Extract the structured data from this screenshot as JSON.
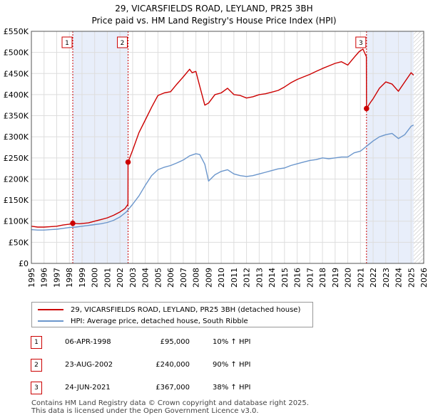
{
  "title_line1": "29, VICARSFIELDS ROAD, LEYLAND, PR25 3BH",
  "title_line2": "Price paid vs. HM Land Registry's House Price Index (HPI)",
  "colors": {
    "property": "#cc0000",
    "hpi": "#6b96cc",
    "shade": "#e8eefa",
    "vline": "#cc0000",
    "grid": "#dddddd",
    "hatch": "#bbbbbb"
  },
  "legend": {
    "property_label": "29, VICARSFIELDS ROAD, LEYLAND, PR25 3BH (detached house)",
    "hpi_label": "HPI: Average price, detached house, South Ribble"
  },
  "sales": [
    {
      "num": "1",
      "date": "06-APR-1998",
      "price": "£95,000",
      "hpi": "10% ↑ HPI"
    },
    {
      "num": "2",
      "date": "23-AUG-2002",
      "price": "£240,000",
      "hpi": "90% ↑ HPI"
    },
    {
      "num": "3",
      "date": "24-JUN-2021",
      "price": "£367,000",
      "hpi": "38% ↑ HPI"
    }
  ],
  "footer": {
    "line1": "Contains HM Land Registry data © Crown copyright and database right 2025.",
    "line2": "This data is licensed under the Open Government Licence v3.0."
  },
  "chart_data": {
    "type": "line",
    "title": "29, VICARSFIELDS ROAD, LEYLAND, PR25 3BH — Price paid vs. HM Land Registry's House Price Index (HPI)",
    "xlim": [
      1995,
      2026
    ],
    "ylim": [
      0,
      550000
    ],
    "x_ticks": [
      1995,
      1996,
      1997,
      1998,
      1999,
      2000,
      2001,
      2002,
      2003,
      2004,
      2005,
      2006,
      2007,
      2008,
      2009,
      2010,
      2011,
      2012,
      2013,
      2014,
      2015,
      2016,
      2017,
      2018,
      2019,
      2020,
      2021,
      2022,
      2023,
      2024,
      2025,
      2026
    ],
    "y_ticks": [
      {
        "v": 0,
        "label": "£0"
      },
      {
        "v": 50000,
        "label": "£50K"
      },
      {
        "v": 100000,
        "label": "£100K"
      },
      {
        "v": 150000,
        "label": "£150K"
      },
      {
        "v": 200000,
        "label": "£200K"
      },
      {
        "v": 250000,
        "label": "£250K"
      },
      {
        "v": 300000,
        "label": "£300K"
      },
      {
        "v": 350000,
        "label": "£350K"
      },
      {
        "v": 400000,
        "label": "£400K"
      },
      {
        "v": 450000,
        "label": "£450K"
      },
      {
        "v": 500000,
        "label": "£500K"
      },
      {
        "v": 550000,
        "label": "£550K"
      }
    ],
    "shaded_ranges": [
      [
        1998.27,
        2002.64
      ],
      [
        2021.48,
        2025.2
      ]
    ],
    "hatched_from": 2025.2,
    "markers": [
      {
        "num": "1",
        "x": 1998.27,
        "y": 95000
      },
      {
        "num": "2",
        "x": 2002.64,
        "y": 240000
      },
      {
        "num": "3",
        "x": 2021.48,
        "y": 367000
      }
    ],
    "series": [
      {
        "name": "29, VICARSFIELDS ROAD, LEYLAND, PR25 3BH (detached house)",
        "x": [
          1995.0,
          1995.5,
          1996.0,
          1996.5,
          1997.0,
          1997.5,
          1998.0,
          1998.27,
          1998.8,
          1999.5,
          2000.0,
          2000.5,
          2001.0,
          2001.5,
          2002.0,
          2002.4,
          2002.63,
          2002.64,
          2003.0,
          2003.5,
          2004.0,
          2004.5,
          2005.0,
          2005.5,
          2006.0,
          2006.5,
          2007.0,
          2007.5,
          2007.7,
          2008.0,
          2008.3,
          2008.7,
          2009.0,
          2009.5,
          2010.0,
          2010.5,
          2011.0,
          2011.5,
          2012.0,
          2012.5,
          2013.0,
          2013.5,
          2014.0,
          2014.5,
          2015.0,
          2015.5,
          2016.0,
          2016.5,
          2017.0,
          2017.5,
          2018.0,
          2018.5,
          2019.0,
          2019.5,
          2020.0,
          2020.5,
          2020.9,
          2021.2,
          2021.47,
          2021.48,
          2021.8,
          2022.0,
          2022.5,
          2023.0,
          2023.5,
          2024.0,
          2024.5,
          2025.0,
          2025.2
        ],
        "values": [
          88000,
          86000,
          86000,
          87000,
          88000,
          91000,
          93000,
          95000,
          94000,
          96000,
          100000,
          104000,
          108000,
          114000,
          122000,
          130000,
          140000,
          240000,
          268000,
          310000,
          340000,
          370000,
          398000,
          404000,
          407000,
          425000,
          442000,
          460000,
          452000,
          455000,
          420000,
          375000,
          380000,
          400000,
          404000,
          415000,
          400000,
          398000,
          392000,
          395000,
          400000,
          402000,
          406000,
          410000,
          418000,
          428000,
          436000,
          442000,
          448000,
          455000,
          462000,
          468000,
          474000,
          478000,
          470000,
          488000,
          502000,
          508000,
          490000,
          367000,
          382000,
          390000,
          415000,
          430000,
          425000,
          408000,
          430000,
          452000,
          446000
        ]
      },
      {
        "name": "HPI: Average price, detached house, South Ribble",
        "x": [
          1995.0,
          1995.5,
          1996.0,
          1996.5,
          1997.0,
          1997.5,
          1998.0,
          1998.5,
          1999.0,
          1999.5,
          2000.0,
          2000.5,
          2001.0,
          2001.5,
          2002.0,
          2002.5,
          2003.0,
          2003.5,
          2004.0,
          2004.5,
          2005.0,
          2005.5,
          2006.0,
          2006.5,
          2007.0,
          2007.5,
          2008.0,
          2008.3,
          2008.7,
          2009.0,
          2009.5,
          2010.0,
          2010.5,
          2011.0,
          2011.5,
          2012.0,
          2012.5,
          2013.0,
          2013.5,
          2014.0,
          2014.5,
          2015.0,
          2015.5,
          2016.0,
          2016.5,
          2017.0,
          2017.5,
          2018.0,
          2018.5,
          2019.0,
          2019.5,
          2020.0,
          2020.5,
          2021.0,
          2021.5,
          2022.0,
          2022.5,
          2023.0,
          2023.5,
          2024.0,
          2024.5,
          2025.0,
          2025.2
        ],
        "values": [
          80000,
          79000,
          79000,
          80000,
          81000,
          83000,
          85000,
          86000,
          88000,
          90000,
          92000,
          94000,
          97000,
          102000,
          110000,
          122000,
          140000,
          160000,
          185000,
          208000,
          222000,
          228000,
          232000,
          238000,
          245000,
          255000,
          260000,
          258000,
          235000,
          195000,
          210000,
          218000,
          222000,
          212000,
          208000,
          206000,
          208000,
          212000,
          216000,
          220000,
          224000,
          226000,
          232000,
          236000,
          240000,
          244000,
          246000,
          250000,
          248000,
          250000,
          252000,
          252000,
          262000,
          266000,
          278000,
          290000,
          300000,
          305000,
          308000,
          296000,
          305000,
          325000,
          328000
        ]
      }
    ]
  }
}
